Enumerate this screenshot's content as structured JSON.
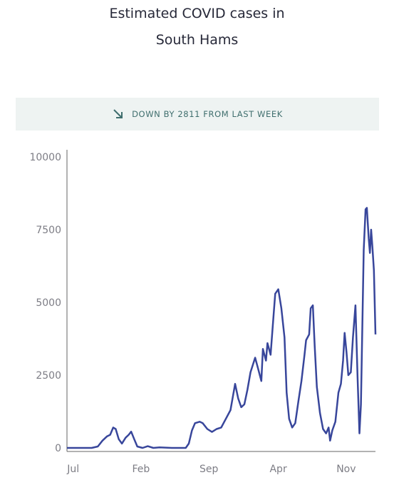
{
  "title_line1": "Estimated COVID cases in",
  "title_line2": "South Hams",
  "banner": {
    "icon": "arrow-down-right-icon",
    "text": "DOWN BY 2811 FROM LAST WEEK",
    "color": "#3f6e6d"
  },
  "chart_data": {
    "type": "line",
    "title": "Estimated COVID cases in South Hams",
    "xlabel": "",
    "ylabel": "",
    "ylim": [
      0,
      10000
    ],
    "yticks": [
      0,
      2500,
      5000,
      7500,
      10000
    ],
    "ytick_labels": [
      "0",
      "2500",
      "5000",
      "7500",
      "10000"
    ],
    "xticks": [
      {
        "x": 0.02,
        "label": "Jul"
      },
      {
        "x": 0.24,
        "label": "Feb"
      },
      {
        "x": 0.46,
        "label": "Sep"
      },
      {
        "x": 0.685,
        "label": "Apr"
      },
      {
        "x": 0.905,
        "label": "Nov"
      }
    ],
    "xlim": [
      0,
      1
    ],
    "grid": false,
    "line_color": "#38469b",
    "series": [
      {
        "values": [
          [
            0.0,
            0
          ],
          [
            0.08,
            0
          ],
          [
            0.1,
            50
          ],
          [
            0.115,
            250
          ],
          [
            0.13,
            400
          ],
          [
            0.14,
            450
          ],
          [
            0.15,
            700
          ],
          [
            0.158,
            650
          ],
          [
            0.168,
            300
          ],
          [
            0.178,
            150
          ],
          [
            0.19,
            350
          ],
          [
            0.2,
            450
          ],
          [
            0.208,
            560
          ],
          [
            0.218,
            300
          ],
          [
            0.228,
            50
          ],
          [
            0.245,
            0
          ],
          [
            0.262,
            60
          ],
          [
            0.28,
            0
          ],
          [
            0.3,
            20
          ],
          [
            0.34,
            0
          ],
          [
            0.385,
            0
          ],
          [
            0.395,
            150
          ],
          [
            0.405,
            600
          ],
          [
            0.415,
            850
          ],
          [
            0.43,
            900
          ],
          [
            0.44,
            850
          ],
          [
            0.455,
            650
          ],
          [
            0.47,
            550
          ],
          [
            0.485,
            650
          ],
          [
            0.5,
            700
          ],
          [
            0.515,
            1000
          ],
          [
            0.53,
            1300
          ],
          [
            0.545,
            2200
          ],
          [
            0.555,
            1700
          ],
          [
            0.565,
            1400
          ],
          [
            0.575,
            1500
          ],
          [
            0.585,
            2000
          ],
          [
            0.595,
            2600
          ],
          [
            0.61,
            3100
          ],
          [
            0.62,
            2700
          ],
          [
            0.63,
            2300
          ],
          [
            0.635,
            3400
          ],
          [
            0.645,
            3000
          ],
          [
            0.65,
            3600
          ],
          [
            0.66,
            3200
          ],
          [
            0.67,
            4600
          ],
          [
            0.675,
            5300
          ],
          [
            0.685,
            5450
          ],
          [
            0.695,
            4800
          ],
          [
            0.705,
            3800
          ],
          [
            0.712,
            1900
          ],
          [
            0.72,
            1000
          ],
          [
            0.73,
            700
          ],
          [
            0.74,
            850
          ],
          [
            0.75,
            1600
          ],
          [
            0.76,
            2300
          ],
          [
            0.77,
            3200
          ],
          [
            0.775,
            3700
          ],
          [
            0.785,
            3900
          ],
          [
            0.79,
            4800
          ],
          [
            0.797,
            4900
          ],
          [
            0.803,
            3500
          ],
          [
            0.81,
            2100
          ],
          [
            0.82,
            1200
          ],
          [
            0.83,
            650
          ],
          [
            0.84,
            500
          ],
          [
            0.848,
            700
          ],
          [
            0.853,
            250
          ],
          [
            0.86,
            600
          ],
          [
            0.87,
            900
          ],
          [
            0.88,
            1900
          ],
          [
            0.888,
            2200
          ],
          [
            0.895,
            3000
          ],
          [
            0.9,
            3950
          ],
          [
            0.906,
            3300
          ],
          [
            0.912,
            2500
          ],
          [
            0.92,
            2600
          ],
          [
            0.927,
            3800
          ],
          [
            0.935,
            4900
          ],
          [
            0.942,
            2400
          ],
          [
            0.948,
            500
          ],
          [
            0.953,
            1500
          ],
          [
            0.958,
            4500
          ],
          [
            0.962,
            6800
          ],
          [
            0.968,
            8200
          ],
          [
            0.972,
            8250
          ],
          [
            0.978,
            7200
          ],
          [
            0.982,
            6700
          ],
          [
            0.986,
            7500
          ],
          [
            0.99,
            6900
          ],
          [
            0.995,
            6100
          ],
          [
            1.0,
            3900
          ]
        ]
      }
    ]
  }
}
